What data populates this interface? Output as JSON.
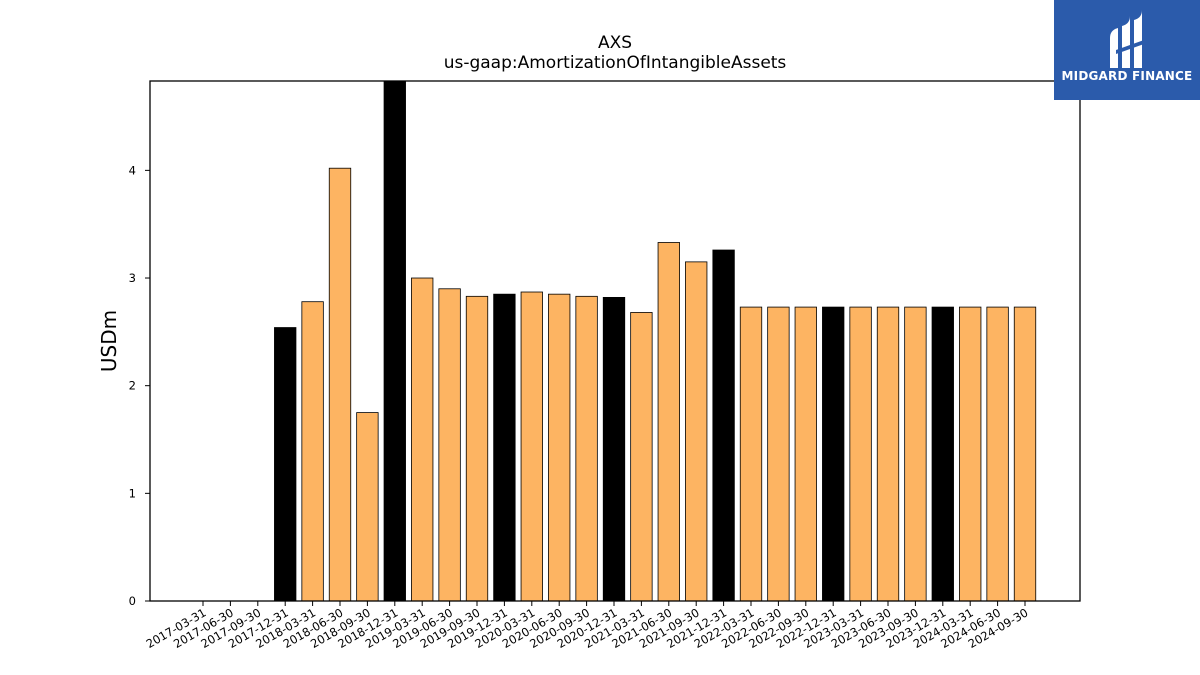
{
  "logo": {
    "text": "MIDGARD FINANCE",
    "icon": "midgard-logo-icon",
    "background": "#2b5bab"
  },
  "chart_data": {
    "type": "bar",
    "title": "AXS",
    "subtitle": "us-gaap:AmortizationOfIntangibleAssets",
    "xlabel": "",
    "ylabel": "USDm",
    "ylim": [
      0,
      4.83
    ],
    "yticks": [
      0,
      1,
      2,
      3,
      4
    ],
    "grid": false,
    "colors": {
      "quarter": "#FDB462",
      "year_end": "#000000",
      "edge": "#000000"
    },
    "categories": [
      "2017-03-31",
      "2017-06-30",
      "2017-09-30",
      "2017-12-31",
      "2018-03-31",
      "2018-06-30",
      "2018-09-30",
      "2018-12-31",
      "2019-03-31",
      "2019-06-30",
      "2019-09-30",
      "2019-12-31",
      "2020-03-31",
      "2020-06-30",
      "2020-09-30",
      "2020-12-31",
      "2021-03-31",
      "2021-06-30",
      "2021-09-30",
      "2021-12-31",
      "2022-03-31",
      "2022-06-30",
      "2022-09-30",
      "2022-12-31",
      "2023-03-31",
      "2023-06-30",
      "2023-09-30",
      "2023-12-31",
      "2024-03-31",
      "2024-06-30",
      "2024-09-30"
    ],
    "values": [
      null,
      null,
      null,
      2.54,
      2.78,
      4.02,
      1.75,
      4.85,
      3.0,
      2.9,
      2.83,
      2.85,
      2.87,
      2.85,
      2.83,
      2.82,
      2.68,
      3.33,
      3.15,
      3.26,
      2.73,
      2.73,
      2.73,
      2.73,
      2.73,
      2.73,
      2.73,
      2.73,
      2.73,
      2.73,
      2.73
    ]
  }
}
